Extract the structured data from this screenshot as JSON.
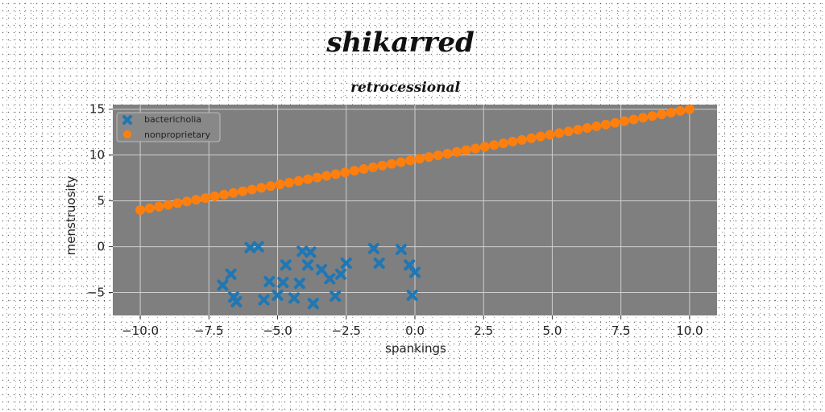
{
  "chart_data": {
    "type": "scatter",
    "title": "shikarred",
    "subtitle": "retrocessional",
    "xlabel": "spankings",
    "ylabel": "menstruosity",
    "xlim": [
      -11,
      11
    ],
    "ylim": [
      -7.5,
      15.5
    ],
    "xticks": [
      -10.0,
      -7.5,
      -5.0,
      -2.5,
      0.0,
      2.5,
      5.0,
      7.5,
      10.0
    ],
    "xtick_labels": [
      "−10.0",
      "−7.5",
      "−5.0",
      "−2.5",
      "0.0",
      "2.5",
      "5.0",
      "7.5",
      "10.0"
    ],
    "yticks": [
      -5,
      0,
      5,
      10,
      15
    ],
    "ytick_labels": [
      "−5",
      "0",
      "5",
      "10",
      "15"
    ],
    "grid": true,
    "legend_position": "top-left",
    "series": [
      {
        "name": "bactericholia",
        "marker": "x",
        "color": "#1f77b4",
        "x": [
          -7.0,
          -6.7,
          -6.6,
          -6.5,
          -6.0,
          -5.7,
          -5.5,
          -5.3,
          -5.0,
          -4.8,
          -4.7,
          -4.4,
          -4.2,
          -4.1,
          -3.9,
          -3.8,
          -3.7,
          -3.4,
          -3.1,
          -2.9,
          -2.7,
          -2.5,
          -1.5,
          -1.3,
          -0.5,
          -0.2,
          0.0,
          -0.1
        ],
        "y": [
          -4.2,
          -3.0,
          -5.5,
          -6.0,
          -0.1,
          0.0,
          -5.8,
          -3.8,
          -5.3,
          -3.9,
          -2.0,
          -5.6,
          -4.0,
          -0.5,
          -2.0,
          -0.6,
          -6.2,
          -2.5,
          -3.5,
          -5.4,
          -3.0,
          -1.8,
          -0.2,
          -1.8,
          -0.3,
          -2.0,
          -2.8,
          -5.3
        ]
      },
      {
        "name": "nonproprietary",
        "marker": "o",
        "color": "#ff7f0e",
        "x_start": -10.0,
        "x_end": 10.0,
        "count": 60,
        "slope": 0.55,
        "intercept": 9.5
      }
    ]
  }
}
